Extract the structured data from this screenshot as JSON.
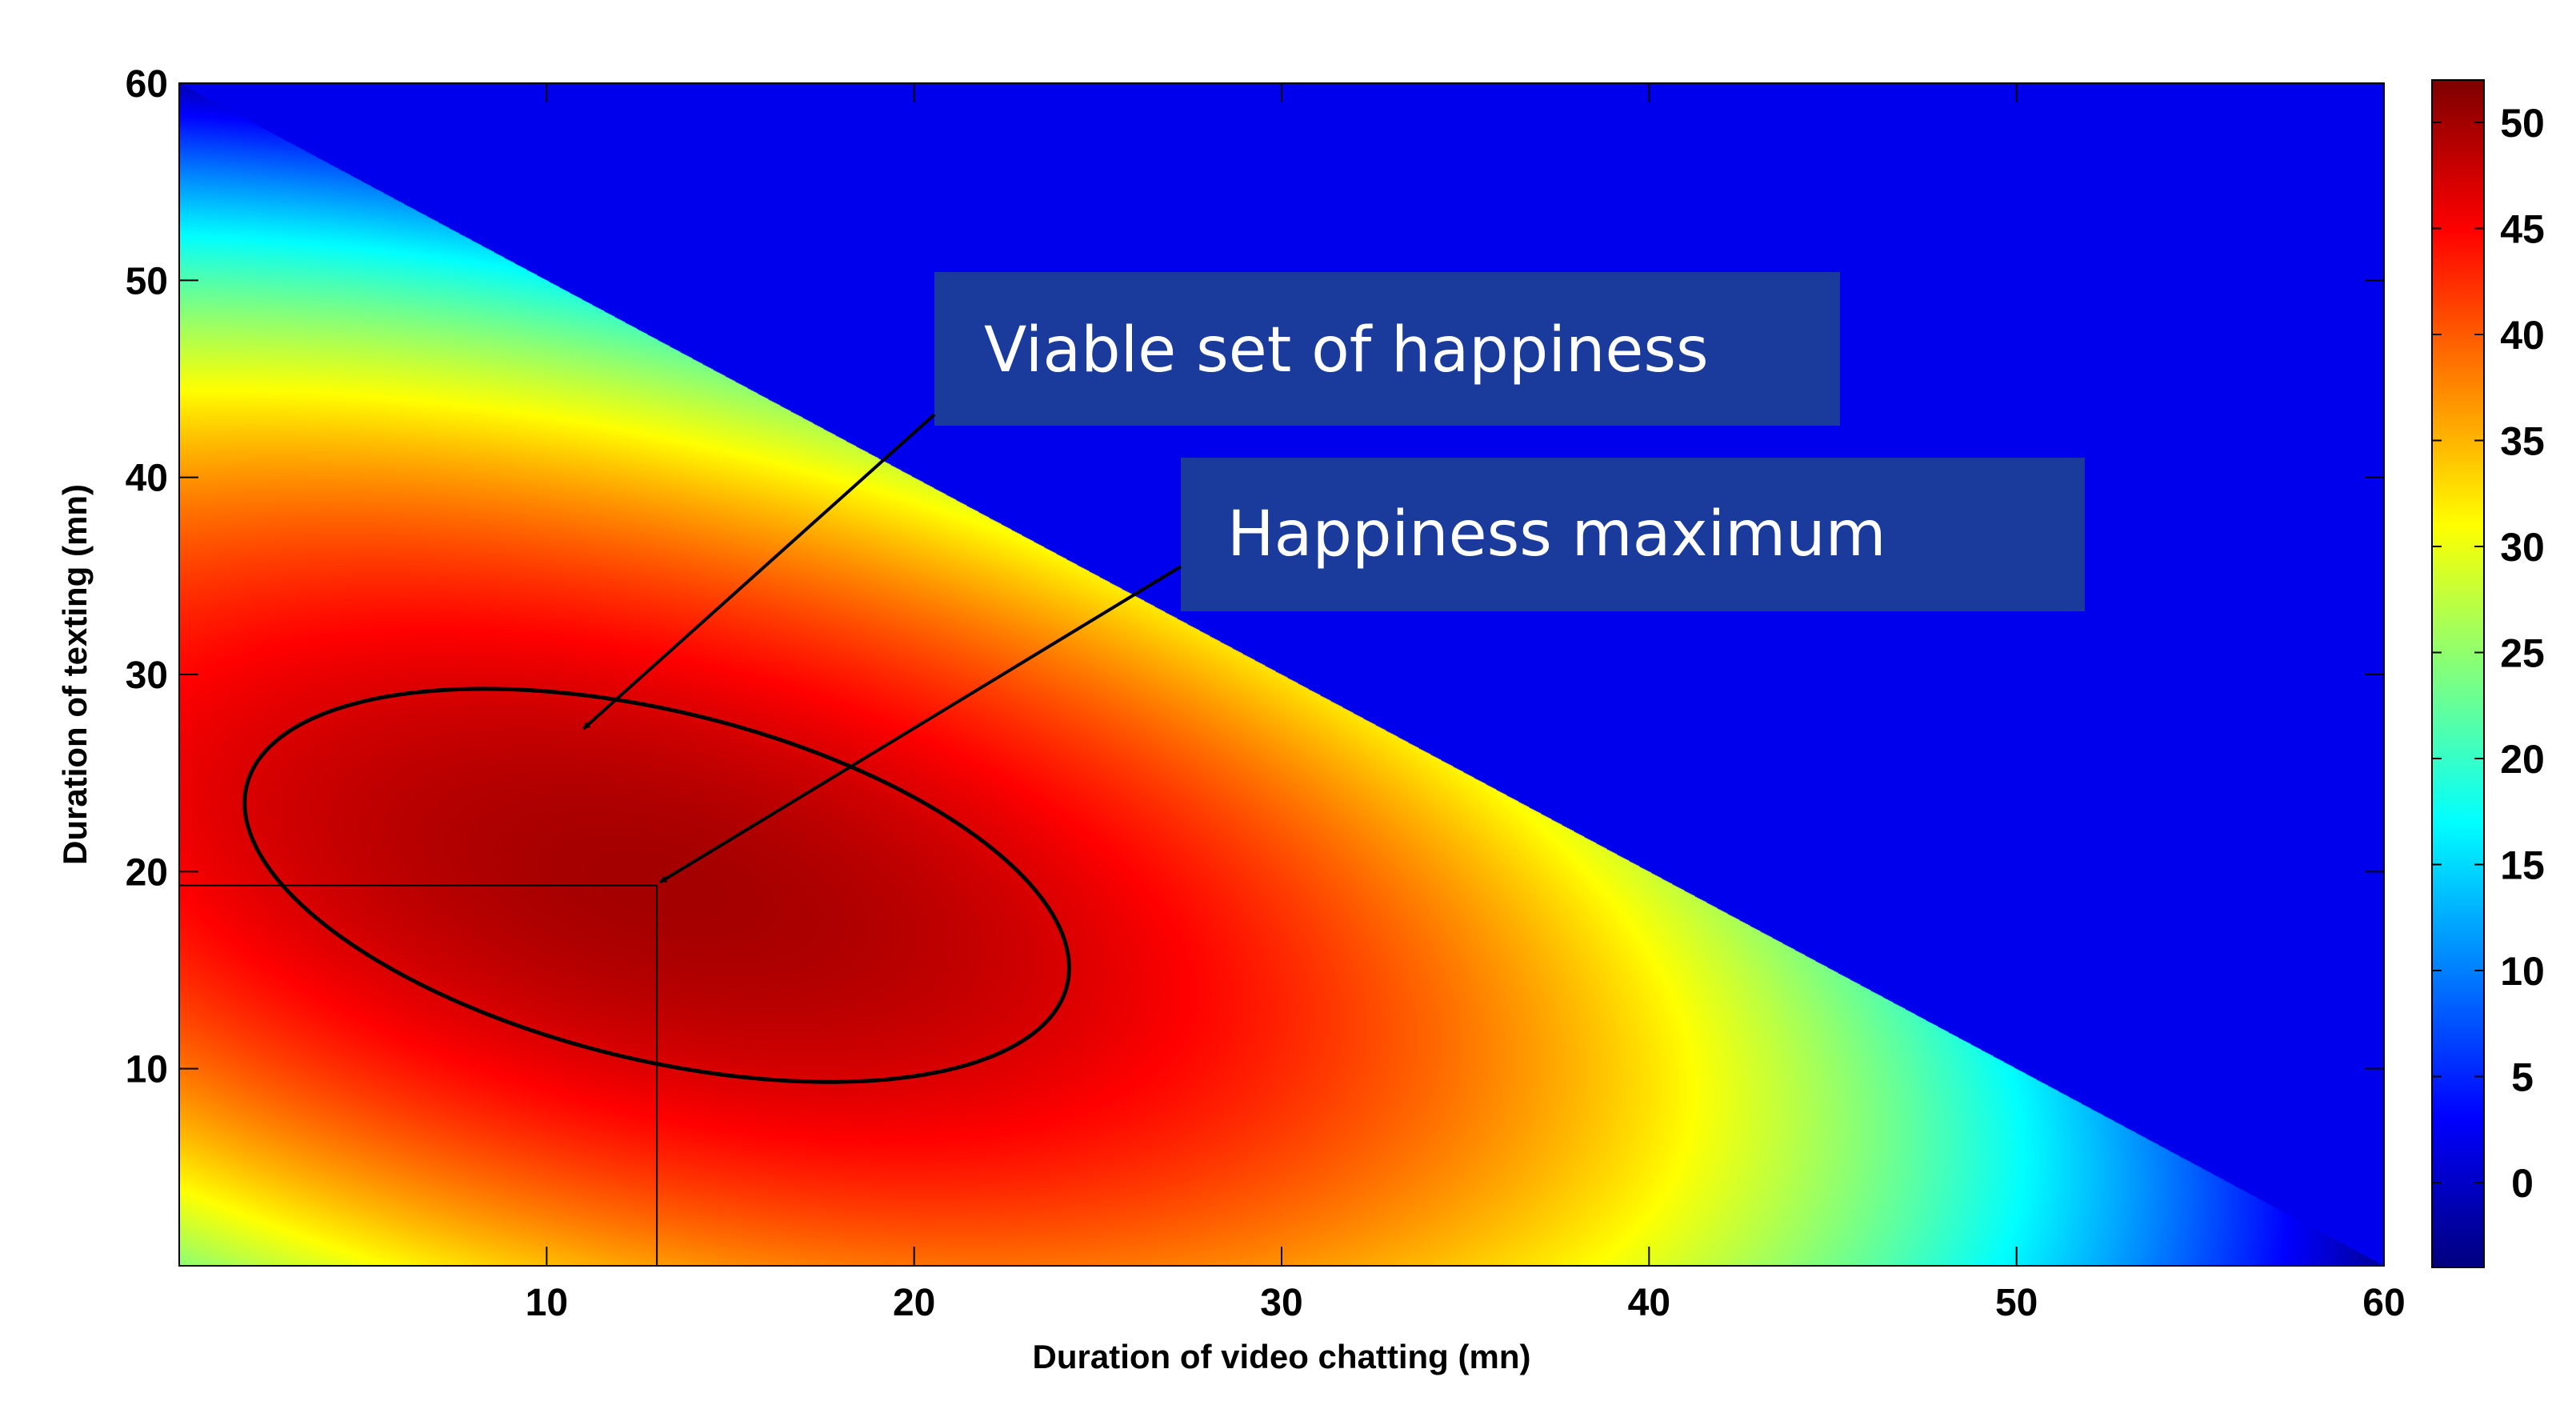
{
  "chart_data": {
    "type": "heatmap",
    "xlabel": "Duration of video chatting (mn)",
    "ylabel": "Duration of texting (mn)",
    "xlim": [
      0,
      60
    ],
    "ylim": [
      0,
      60
    ],
    "x_ticks": [
      "10",
      "20",
      "30",
      "40",
      "50",
      "60"
    ],
    "y_ticks": [
      "10",
      "20",
      "30",
      "40",
      "50",
      "60"
    ],
    "colorbar": {
      "range": [
        -4,
        52
      ],
      "ticks": [
        "0",
        "5",
        "10",
        "15",
        "20",
        "25",
        "30",
        "35",
        "40",
        "45",
        "50"
      ],
      "colormap": "jet"
    },
    "feasible_region": "x + y <= 60",
    "infeasible_value": 2,
    "field": {
      "form": "quadratic",
      "max_value": 50,
      "max_at": [
        13,
        19.3
      ],
      "samples": [
        {
          "x": 13,
          "y": 19.3,
          "value": 50
        },
        {
          "x": 0,
          "y": 60,
          "value": 0
        },
        {
          "x": 0,
          "y": 50,
          "value": 20
        },
        {
          "x": 0,
          "y": 0,
          "value": 24
        },
        {
          "x": 45,
          "y": 5,
          "value": 22
        },
        {
          "x": 55,
          "y": 3,
          "value": 10
        }
      ]
    },
    "viable_set_contour_level": 47,
    "maximum_point": {
      "x": 13,
      "y": 19.3
    },
    "annotations": [
      {
        "text": "Viable set of happiness",
        "target": {
          "x": 11,
          "y": 27
        }
      },
      {
        "text": "Happiness maximum",
        "target": {
          "x": 13,
          "y": 19.3
        }
      }
    ]
  },
  "colors": {
    "box_fill": "#1a3a9c",
    "box_text": "#ffffff",
    "contour": "#000000"
  }
}
